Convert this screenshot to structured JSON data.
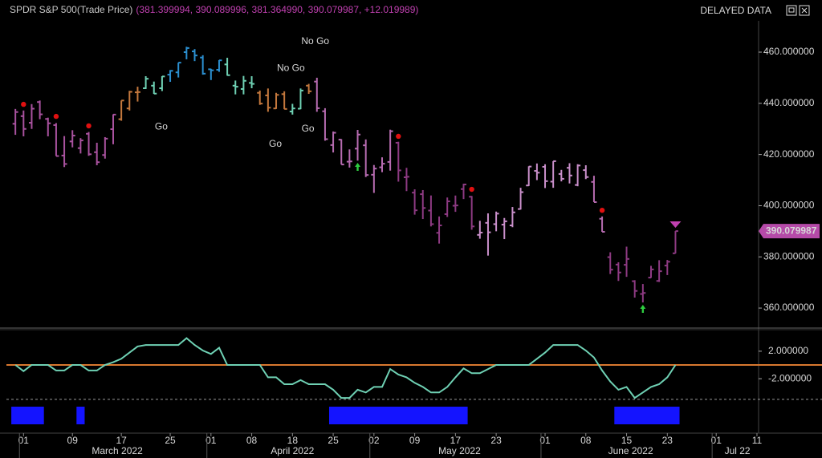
{
  "window": {
    "title": "SPDR S&P 500(Trade Price)",
    "ohlc_text": "(381.399994, 390.089996, 381.364990, 390.079987, +12.019989)",
    "status": "DELAYED DATA"
  },
  "chart_data": [
    {
      "type": "ohlc",
      "open": [
        432.0,
        435.0,
        432.4,
        440.5,
        433.9,
        431.5,
        419.6,
        425.1,
        422.5,
        428.1,
        420.9,
        419.8,
        429.9,
        433.8,
        438.0,
        444.3,
        445.9,
        446.9,
        445.9,
        451.2,
        452.1,
        460.0,
        460.3,
        457.9,
        453.3,
        453.1,
        455.2,
        446.9,
        445.6,
        447.97,
        444.1,
        443.1,
        438.0,
        443.6,
        436.8,
        437.9,
        446.9,
        448.5,
        436.9,
        423.7,
        425.8,
        417.2,
        422.3,
        423.6,
        412.1,
        415.0,
        417.1,
        424.6,
        411.1,
        405.1,
        404.5,
        398.1,
        389.4,
        396.7,
        399.98,
        406.5,
        403.5,
        388.6,
        393.3,
        392.8,
        392.6,
        392.3,
        398.7,
        407.9,
        413.6,
        415.2,
        409.4,
        412.4,
        414.8,
        408.1,
        413.9,
        409.3,
        394.9,
        379.9,
        377.0,
        376.9,
        370.5,
        365.5,
        371.9,
        370.6,
        376.6,
        381.4
      ],
      "high": [
        437.8,
        437.2,
        439.7,
        441.1,
        434.4,
        432.3,
        427.2,
        429.5,
        426.4,
        428.8,
        424.6,
        426.8,
        435.7,
        441.1,
        444.9,
        446.5,
        450.6,
        448.5,
        450.6,
        452.98,
        455.9,
        462.1,
        461.2,
        458.8,
        453.5,
        456.9,
        457.8,
        448.9,
        450.7,
        450.6,
        445.0,
        445.8,
        444.1,
        444.7,
        439.8,
        445.8,
        447.6,
        450.0,
        438.1,
        429.0,
        426.0,
        422.0,
        429.6,
        425.9,
        415.9,
        418.9,
        429.7,
        425.0,
        414.8,
        406.4,
        406.1,
        404.0,
        395.8,
        403.2,
        403.97,
        408.6,
        403.8,
        394.1,
        397.0,
        397.7,
        395.2,
        399.5,
        407.0,
        415.4,
        416.5,
        416.2,
        417.4,
        414.0,
        416.6,
        416.2,
        415.8,
        411.7,
        395.8,
        381.8,
        377.9,
        384.0,
        370.9,
        369.4,
        376.5,
        378.7,
        378.8,
        390.09
      ],
      "low": [
        427.7,
        427.1,
        430.0,
        433.8,
        427.1,
        419.4,
        415.1,
        422.8,
        420.4,
        419.5,
        415.8,
        418.4,
        424.0,
        433.2,
        437.2,
        440.7,
        445.6,
        443.7,
        444.8,
        448.4,
        450.1,
        457.2,
        456.5,
        451.2,
        449.1,
        452.3,
        450.8,
        443.5,
        443.5,
        445.9,
        439.4,
        436.7,
        437.8,
        437.7,
        435.6,
        437.7,
        443.7,
        436.7,
        425.4,
        420.8,
        416.1,
        414.9,
        417.6,
        411.2,
        405.0,
        413.1,
        413.7,
        409.4,
        405.7,
        396.5,
        394.8,
        391.9,
        385.2,
        395.6,
        397.6,
        402.6,
        390.6,
        387.1,
        380.5,
        390.0,
        386.96,
        391.6,
        398.5,
        407.7,
        410.0,
        406.9,
        407.0,
        409.5,
        408.7,
        407.6,
        410.4,
        401.4,
        389.8,
        373.3,
        370.6,
        372.2,
        364.1,
        362.2,
        371.8,
        370.2,
        372.9,
        381.36
      ],
      "close": [
        436.6,
        430.0,
        437.9,
        435.7,
        432.2,
        419.4,
        416.3,
        427.4,
        425.5,
        420.1,
        417.0,
        426.2,
        435.6,
        441.1,
        444.5,
        444.4,
        449.6,
        443.8,
        450.5,
        452.7,
        455.9,
        461.6,
        458.7,
        451.6,
        452.9,
        456.8,
        451.0,
        446.5,
        448.8,
        447.6,
        439.9,
        438.3,
        443.3,
        437.8,
        438.0,
        445.0,
        444.7,
        438.1,
        426.0,
        428.5,
        416.1,
        417.3,
        427.8,
        412.0,
        414.5,
        416.4,
        429.1,
        413.8,
        411.3,
        398.2,
        399.1,
        392.8,
        392.3,
        401.7,
        400.1,
        408.3,
        391.9,
        389.5,
        389.6,
        396.9,
        393.9,
        397.4,
        405.3,
        415.3,
        412.9,
        409.6,
        417.4,
        410.5,
        411.8,
        415.7,
        411.2,
        401.4,
        389.8,
        375.0,
        373.9,
        379.2,
        366.7,
        365.9,
        375.1,
        374.4,
        378.1,
        390.08
      ],
      "color_segments": [
        {
          "start": 0,
          "color": "#a9529f"
        },
        {
          "start": 13,
          "color": "#c4783d"
        },
        {
          "start": 16,
          "color": "#6fd1b4"
        },
        {
          "start": 19,
          "color": "#2b8fd0"
        },
        {
          "start": 26,
          "color": "#6fd1b4"
        },
        {
          "start": 30,
          "color": "#c4783d"
        },
        {
          "start": 34,
          "color": "#6fd1b4"
        },
        {
          "start": 36,
          "color": "#c4783d"
        },
        {
          "start": 37,
          "color": "#b66bb0"
        },
        {
          "start": 47,
          "color": "#8d3a82"
        },
        {
          "start": 57,
          "color": "#c98fca"
        },
        {
          "start": 71,
          "color": "#b66bb0"
        },
        {
          "start": 73,
          "color": "#8d3a82"
        }
      ],
      "xlim": [
        -1.1,
        91.2
      ],
      "xticks": [
        {
          "value": 1,
          "label": "01"
        },
        {
          "value": 7,
          "label": "09"
        },
        {
          "value": 13,
          "label": "17"
        },
        {
          "value": 19,
          "label": "25"
        },
        {
          "value": 24,
          "label": "01"
        },
        {
          "value": 29,
          "label": "08"
        },
        {
          "value": 34,
          "label": "18"
        },
        {
          "value": 39,
          "label": "25"
        },
        {
          "value": 44,
          "label": "02"
        },
        {
          "value": 49,
          "label": "09"
        },
        {
          "value": 54,
          "label": "17"
        },
        {
          "value": 59,
          "label": "23"
        },
        {
          "value": 65,
          "label": "01"
        },
        {
          "value": 70,
          "label": "08"
        },
        {
          "value": 75,
          "label": "15"
        },
        {
          "value": 80,
          "label": "23"
        },
        {
          "value": 86,
          "label": "01"
        },
        {
          "value": 91,
          "label": "11"
        }
      ],
      "months": [
        {
          "value": 1,
          "label": "March 2022"
        },
        {
          "value": 24,
          "label": "April 2022"
        },
        {
          "value": 44,
          "label": "May 2022"
        },
        {
          "value": 65,
          "label": "June 2022"
        },
        {
          "value": 86,
          "label": "Jul 22"
        }
      ],
      "ylim": [
        352.5,
        471.6
      ],
      "yticks": [
        {
          "value": 460,
          "label": "460.000000"
        },
        {
          "value": 440,
          "label": "440.000000"
        },
        {
          "value": 420,
          "label": "420.000000"
        },
        {
          "value": 400,
          "label": "400.000000"
        },
        {
          "value": 380,
          "label": "380.000000"
        },
        {
          "value": 360,
          "label": "360.000000"
        }
      ],
      "last_price": {
        "value": 390.079987,
        "label": "390.079987",
        "color": "#b54aa8"
      },
      "annotations": [
        {
          "text": "Go",
          "x": 17.9,
          "y": 430.8,
          "color": "#3ec9cf"
        },
        {
          "text": "No Go",
          "x": 36.8,
          "y": 464.1,
          "color": "#d02fd0"
        },
        {
          "text": "No Go",
          "x": 33.8,
          "y": 453.7,
          "color": "#d02fd0"
        },
        {
          "text": "Go",
          "x": 31.9,
          "y": 424.0,
          "color": "#3ec9cf"
        },
        {
          "text": "Go",
          "x": 35.9,
          "y": 429.9,
          "color": "#3ec9cf"
        }
      ],
      "markers": [
        {
          "shape": "dot",
          "color": "#e01010",
          "points": [
            {
              "x": 1,
              "y": 439.6
            },
            {
              "x": 5,
              "y": 434.9
            },
            {
              "x": 9,
              "y": 431.2
            },
            {
              "x": 47,
              "y": 427.1
            },
            {
              "x": 56,
              "y": 406.4
            },
            {
              "x": 72,
              "y": 398.2
            }
          ]
        },
        {
          "shape": "arrow-up",
          "color": "#2ecc40",
          "points": [
            {
              "x": 42,
              "y": 415.2
            },
            {
              "x": 77,
              "y": 359.7
            }
          ]
        },
        {
          "shape": "triangle-down",
          "color": "#c040b0",
          "points": [
            {
              "x": 81,
              "y": 392.3
            }
          ]
        }
      ]
    },
    {
      "type": "line",
      "values": [
        0,
        -0.9,
        0,
        0,
        0,
        -0.8,
        -0.8,
        0,
        0,
        -0.8,
        -0.8,
        0,
        0.4,
        0.9,
        1.8,
        2.7,
        2.9,
        2.9,
        2.9,
        2.9,
        2.9,
        3.9,
        2.9,
        2.1,
        1.6,
        2.5,
        0,
        0,
        0,
        0,
        0,
        -1.8,
        -1.8,
        -2.8,
        -2.8,
        -2.2,
        -2.8,
        -2.8,
        -2.8,
        -3.6,
        -4.8,
        -4.8,
        -3.6,
        -4.0,
        -3.2,
        -3.2,
        -0.6,
        -1.4,
        -1.8,
        -2.6,
        -3.2,
        -4.0,
        -4.0,
        -3.2,
        -1.8,
        -0.5,
        -1.2,
        -1.2,
        -0.6,
        0,
        0,
        0,
        0,
        0,
        0.9,
        1.8,
        2.9,
        2.9,
        2.9,
        2.9,
        2.1,
        1.1,
        -0.8,
        -2.4,
        -3.6,
        -3.2,
        -4.8,
        -4.0,
        -3.2,
        -2.8,
        -1.8,
        0
      ],
      "color": "#6fd1b4",
      "ylim": [
        -5.6,
        4.9
      ],
      "yticks": [
        {
          "value": 2,
          "label": "2.000000"
        },
        {
          "value": -2,
          "label": "-2.000000"
        }
      ],
      "reference_lines": [
        {
          "value": 0,
          "color": "#d9782f",
          "style": "solid"
        },
        {
          "value": -5,
          "color": "#9a9a9a",
          "style": "dashed"
        }
      ],
      "band": {
        "color": "#1414ff",
        "ranges": [
          [
            0,
            3
          ],
          [
            8,
            8
          ],
          [
            39,
            55
          ],
          [
            74,
            81
          ]
        ]
      }
    }
  ]
}
